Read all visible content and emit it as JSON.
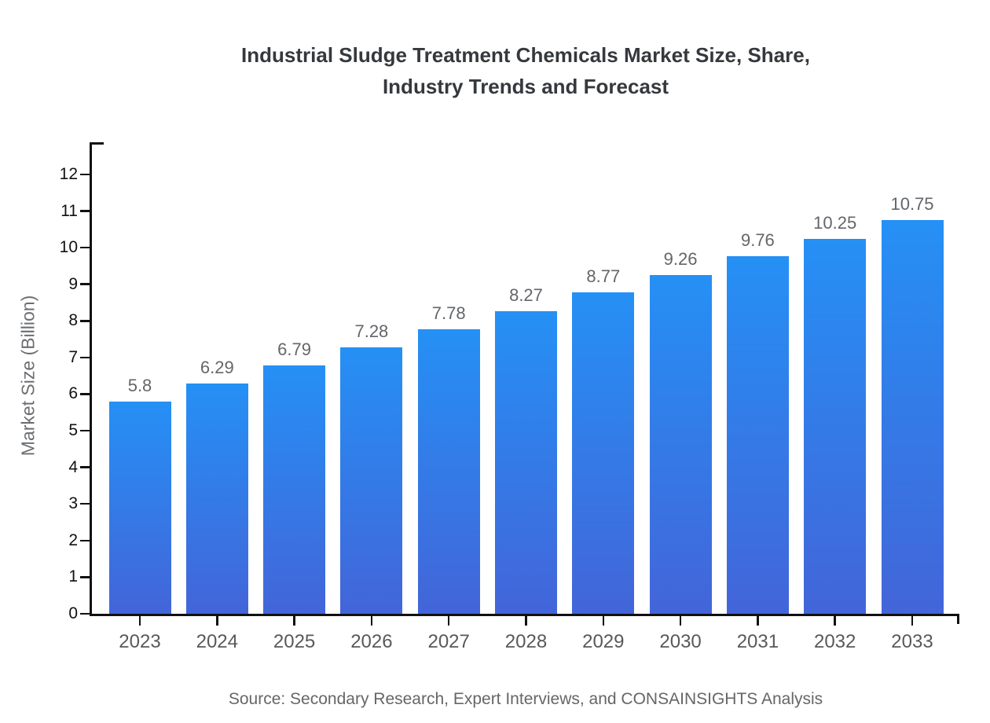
{
  "title": {
    "line1": "Industrial Sludge Treatment Chemicals Market Size, Share,",
    "line2": "Industry Trends and Forecast"
  },
  "source": "Source: Secondary Research, Expert Interviews, and CONSAINSIGHTS Analysis",
  "chart_data": {
    "type": "bar",
    "title": "Industrial Sludge Treatment Chemicals Market Size, Share, Industry Trends and Forecast",
    "categories": [
      "2023",
      "2024",
      "2025",
      "2026",
      "2027",
      "2028",
      "2029",
      "2030",
      "2031",
      "2032",
      "2033"
    ],
    "values": [
      5.8,
      6.29,
      6.79,
      7.28,
      7.78,
      8.27,
      8.77,
      9.26,
      9.76,
      10.25,
      10.75
    ],
    "value_labels": [
      "5.8",
      "6.29",
      "6.79",
      "7.28",
      "7.78",
      "8.27",
      "8.77",
      "9.26",
      "9.76",
      "10.25",
      "10.75"
    ],
    "xlabel": "",
    "ylabel": "Market Size (Billion)",
    "ylim": [
      0,
      12.88
    ],
    "yticks": [
      0,
      1,
      2,
      3,
      4,
      5,
      6,
      7,
      8,
      9,
      10,
      11,
      12
    ],
    "grid": false,
    "legend": null,
    "colors": {
      "bar_gradient_top": "#2590f5",
      "bar_gradient_bottom": "#4365d9",
      "axis": "#111111",
      "ytick_label": "#111111",
      "category_label": "#58595b",
      "value_label": "#63666a",
      "title": "#35393d",
      "ylabel": "#6b6e72",
      "source": "#666666",
      "background": "#ffffff"
    }
  }
}
